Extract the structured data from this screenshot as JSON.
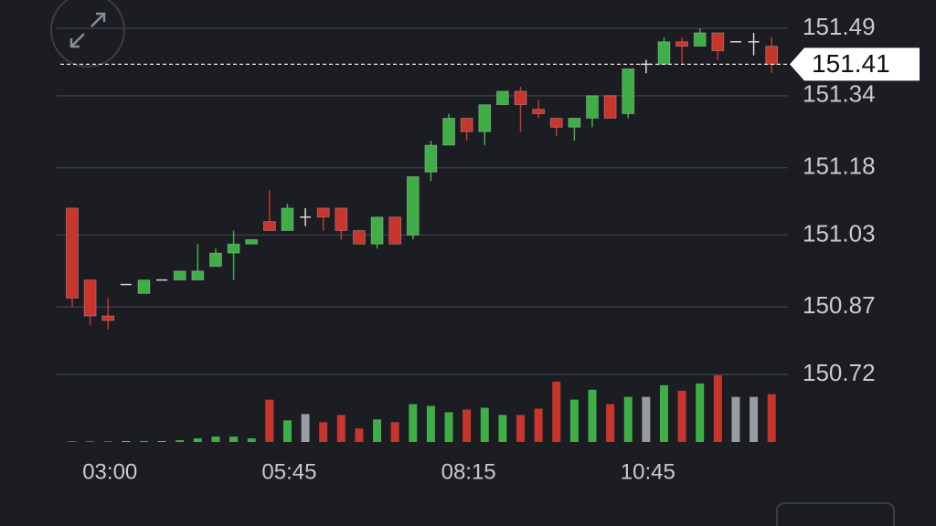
{
  "chart_data": {
    "type": "candlestick",
    "categories": [
      null,
      null,
      "03:00",
      null,
      null,
      null,
      null,
      null,
      null,
      null,
      null,
      null,
      "05:45",
      null,
      null,
      null,
      null,
      null,
      null,
      null,
      null,
      null,
      "08:15",
      null,
      null,
      null,
      null,
      null,
      null,
      null,
      null,
      null,
      "10:45",
      null,
      null,
      null,
      null,
      null,
      null,
      null
    ],
    "open": [
      151.09,
      150.93,
      150.85,
      150.92,
      150.9,
      150.93,
      150.93,
      150.93,
      150.96,
      150.99,
      151.01,
      151.06,
      151.04,
      151.07,
      151.09,
      151.09,
      151.04,
      151.01,
      151.07,
      151.03,
      151.17,
      151.23,
      151.29,
      151.26,
      151.32,
      151.35,
      151.31,
      151.29,
      151.27,
      151.29,
      151.34,
      151.3,
      151.41,
      151.41,
      151.46,
      151.45,
      151.48,
      151.46,
      151.46,
      151.45
    ],
    "high": [
      151.09,
      150.93,
      150.89,
      150.92,
      150.93,
      150.93,
      150.95,
      151.01,
      151.0,
      151.04,
      151.02,
      151.13,
      151.1,
      151.09,
      151.09,
      151.09,
      151.04,
      151.07,
      151.07,
      151.16,
      151.24,
      151.3,
      151.29,
      151.32,
      151.35,
      151.36,
      151.33,
      151.29,
      151.29,
      151.34,
      151.34,
      151.4,
      151.42,
      151.47,
      151.47,
      151.49,
      151.48,
      151.46,
      151.48,
      151.47
    ],
    "low": [
      150.87,
      150.83,
      150.82,
      150.92,
      150.9,
      150.93,
      150.93,
      150.93,
      150.96,
      150.93,
      151.01,
      151.04,
      151.04,
      151.05,
      151.04,
      151.02,
      151.01,
      151.0,
      151.01,
      151.02,
      151.15,
      151.23,
      151.24,
      151.23,
      151.32,
      151.26,
      151.29,
      151.25,
      151.24,
      151.27,
      151.29,
      151.29,
      151.39,
      151.41,
      151.41,
      151.45,
      151.42,
      151.46,
      151.43,
      151.39
    ],
    "close": [
      150.89,
      150.85,
      150.84,
      150.92,
      150.93,
      150.93,
      150.95,
      150.95,
      150.99,
      151.01,
      151.02,
      151.04,
      151.09,
      151.07,
      151.07,
      151.04,
      151.01,
      151.07,
      151.01,
      151.16,
      151.23,
      151.29,
      151.26,
      151.32,
      151.35,
      151.32,
      151.3,
      151.27,
      151.29,
      151.34,
      151.29,
      151.4,
      151.41,
      151.46,
      151.45,
      151.48,
      151.44,
      151.46,
      151.46,
      151.41
    ],
    "volume": [
      1,
      1,
      1,
      1,
      1,
      1,
      2,
      4,
      6,
      6,
      4,
      47,
      24,
      31,
      22,
      30,
      15,
      25,
      22,
      42,
      40,
      33,
      36,
      38,
      30,
      30,
      37,
      67,
      47,
      58,
      42,
      50,
      50,
      63,
      57,
      65,
      74,
      50,
      50,
      53
    ],
    "ylim": [
      150.72,
      151.49
    ],
    "yticks": [
      151.49,
      151.34,
      151.18,
      151.03,
      150.87,
      150.72
    ],
    "volume_lim": [
      0,
      75
    ],
    "last_price": 151.41,
    "grid": true,
    "up_color": "#3fae46",
    "down_color": "#c8352c",
    "flat_color": "#9a9ca3"
  }
}
